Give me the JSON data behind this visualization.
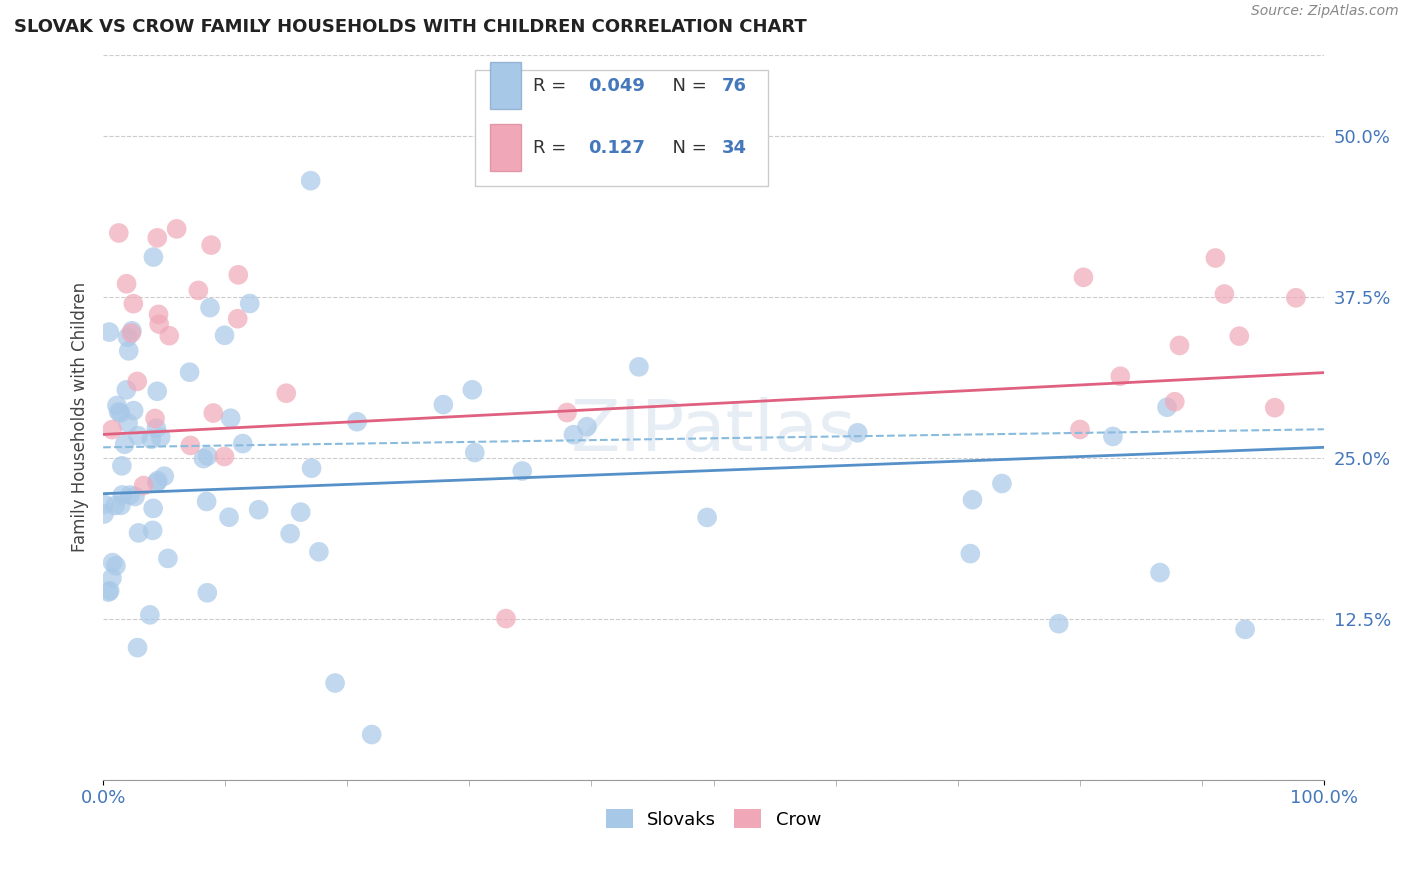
{
  "title": "SLOVAK VS CROW FAMILY HOUSEHOLDS WITH CHILDREN CORRELATION CHART",
  "source_text": "Source: ZipAtlas.com",
  "ylabel": "Family Households with Children",
  "color_slovak": "#a8c8e8",
  "color_crow": "#f0a8b8",
  "color_trend_slovak_solid": "#5590c8",
  "color_trend_slovak_dash": "#88bbdd",
  "color_trend_crow": "#e06080",
  "color_axis_labels": "#4477bb",
  "color_grid": "#cccccc",
  "xlim": [
    0.0,
    1.0
  ],
  "ylim": [
    0.0,
    0.5625
  ],
  "yticks": [
    0.0,
    0.125,
    0.25,
    0.375,
    0.5
  ],
  "ytick_labels": [
    "",
    "12.5%",
    "25.0%",
    "37.5%",
    "50.0%"
  ],
  "legend_r1": "0.049",
  "legend_n1": "76",
  "legend_r2": "0.127",
  "legend_n2": "34"
}
